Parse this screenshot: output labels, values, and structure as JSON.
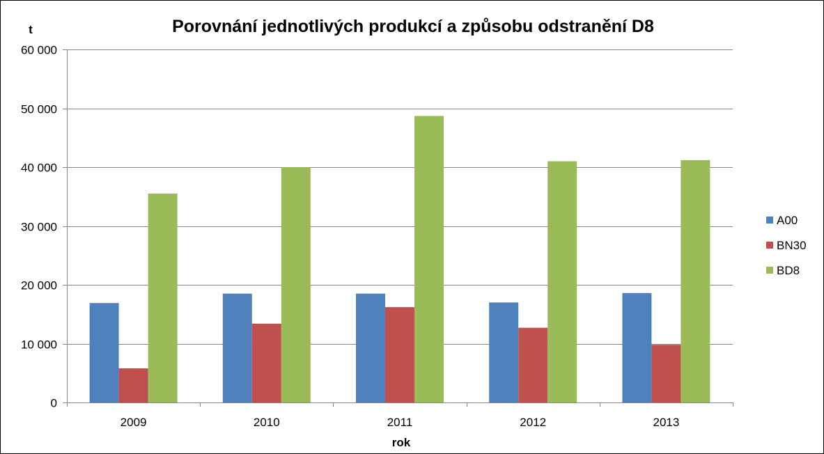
{
  "chart_data": {
    "type": "bar",
    "title": "Porovnání jednotlivých produkcí a způsobu odstranění D8",
    "ylabel": "t",
    "xlabel": "rok",
    "categories": [
      "2009",
      "2010",
      "2011",
      "2012",
      "2013"
    ],
    "ylim": [
      0,
      60000
    ],
    "yticks": [
      0,
      10000,
      20000,
      30000,
      40000,
      50000,
      60000
    ],
    "ytick_labels": [
      "0",
      "10 000",
      "20 000",
      "30 000",
      "40 000",
      "50 000",
      "60 000"
    ],
    "grid": true,
    "legend": "right",
    "series": [
      {
        "name": "A00",
        "color": "#4F81BD",
        "values": [
          16900,
          18500,
          18500,
          17000,
          18600
        ]
      },
      {
        "name": "BN30",
        "color": "#C0504D",
        "values": [
          5800,
          13400,
          16200,
          12700,
          9800
        ]
      },
      {
        "name": "BD8",
        "color": "#9BBB59",
        "values": [
          35500,
          40000,
          48700,
          41000,
          41200
        ]
      }
    ]
  }
}
